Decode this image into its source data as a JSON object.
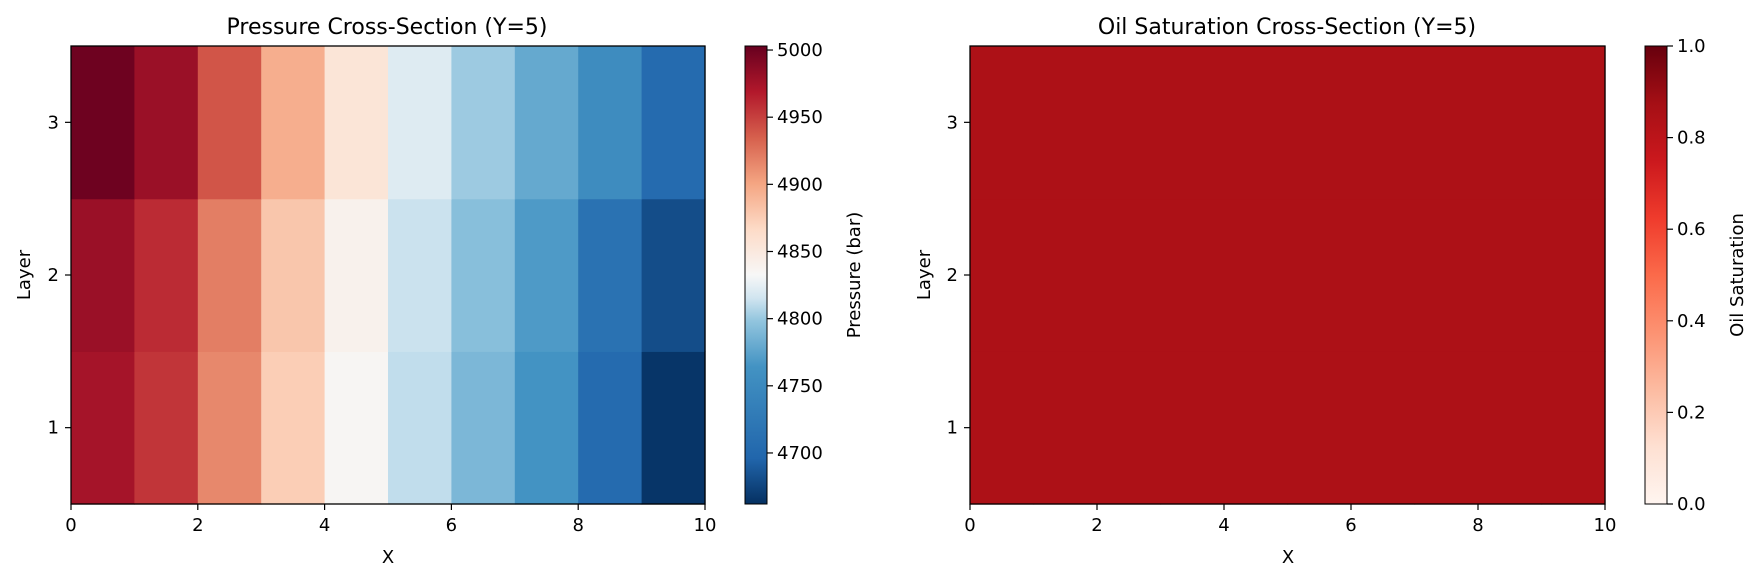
{
  "chart_data": [
    {
      "type": "heatmap",
      "title": "Pressure Cross-Section (Y=5)",
      "xlabel": "X",
      "ylabel": "Layer",
      "xlim": [
        0,
        10
      ],
      "ylim": [
        0.5,
        3.5
      ],
      "x_ticks": [
        "0",
        "2",
        "4",
        "6",
        "8",
        "10"
      ],
      "y_ticks": [
        "1",
        "2",
        "3"
      ],
      "colormap": "RdBu_r",
      "colorbar": {
        "label": "Pressure (bar)",
        "range": [
          4662,
          5003
        ],
        "ticks": [
          "4700",
          "4750",
          "4800",
          "4850",
          "4900",
          "4950",
          "5000"
        ]
      },
      "rows": [
        {
          "layer": 1,
          "values": [
            4975,
            4955,
            4915,
            4875,
            4835,
            4790,
            4755,
            4730,
            4700,
            4665
          ]
        },
        {
          "layer": 2,
          "values": [
            4980,
            4960,
            4920,
            4880,
            4840,
            4795,
            4760,
            4735,
            4705,
            4680
          ]
        },
        {
          "layer": 3,
          "values": [
            5000,
            4980,
            4940,
            4895,
            4855,
            4810,
            4770,
            4745,
            4725,
            4700
          ]
        }
      ]
    },
    {
      "type": "heatmap",
      "title": "Oil Saturation Cross-Section (Y=5)",
      "xlabel": "X",
      "ylabel": "Layer",
      "xlim": [
        0,
        10
      ],
      "ylim": [
        0.5,
        3.5
      ],
      "x_ticks": [
        "0",
        "2",
        "4",
        "6",
        "8",
        "10"
      ],
      "y_ticks": [
        "1",
        "2",
        "3"
      ],
      "colormap": "Reds",
      "colorbar": {
        "label": "Oil Saturation",
        "range": [
          0,
          1
        ],
        "ticks": [
          "0.0",
          "0.2",
          "0.4",
          "0.6",
          "0.8",
          "1.0"
        ]
      },
      "rows": [
        {
          "layer": 1,
          "values": [
            0.85,
            0.85,
            0.85,
            0.85,
            0.85,
            0.85,
            0.85,
            0.85,
            0.85,
            0.85
          ]
        },
        {
          "layer": 2,
          "values": [
            0.85,
            0.85,
            0.85,
            0.85,
            0.85,
            0.85,
            0.85,
            0.85,
            0.85,
            0.85
          ]
        },
        {
          "layer": 3,
          "values": [
            0.85,
            0.85,
            0.85,
            0.85,
            0.85,
            0.85,
            0.85,
            0.85,
            0.85,
            0.85
          ]
        }
      ]
    }
  ]
}
